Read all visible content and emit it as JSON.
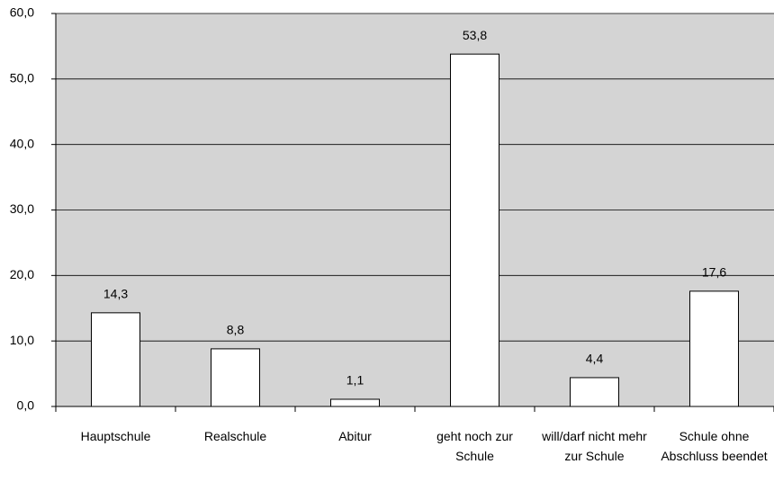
{
  "chart_data": {
    "type": "bar",
    "categories": [
      "Hauptschule",
      "Realschule",
      "Abitur",
      "geht noch zur Schule",
      "will/darf nicht mehr zur Schule",
      "Schule ohne Abschluss beendet"
    ],
    "values": [
      14.3,
      8.8,
      1.1,
      53.8,
      4.4,
      17.6
    ],
    "value_labels": [
      "14,3",
      "8,8",
      "1,1",
      "53,8",
      "4,4",
      "17,6"
    ],
    "color": "#ffffff",
    "background": "#d4d4d4",
    "ylim": [
      0,
      60
    ],
    "yticks": [
      {
        "value": 0,
        "label": "0,0"
      },
      {
        "value": 10,
        "label": "10,0"
      },
      {
        "value": 20,
        "label": "20,0"
      },
      {
        "value": 30,
        "label": "30,0"
      },
      {
        "value": 40,
        "label": "40,0"
      },
      {
        "value": 50,
        "label": "50,0"
      },
      {
        "value": 60,
        "label": "60,0"
      }
    ],
    "grid": true
  }
}
